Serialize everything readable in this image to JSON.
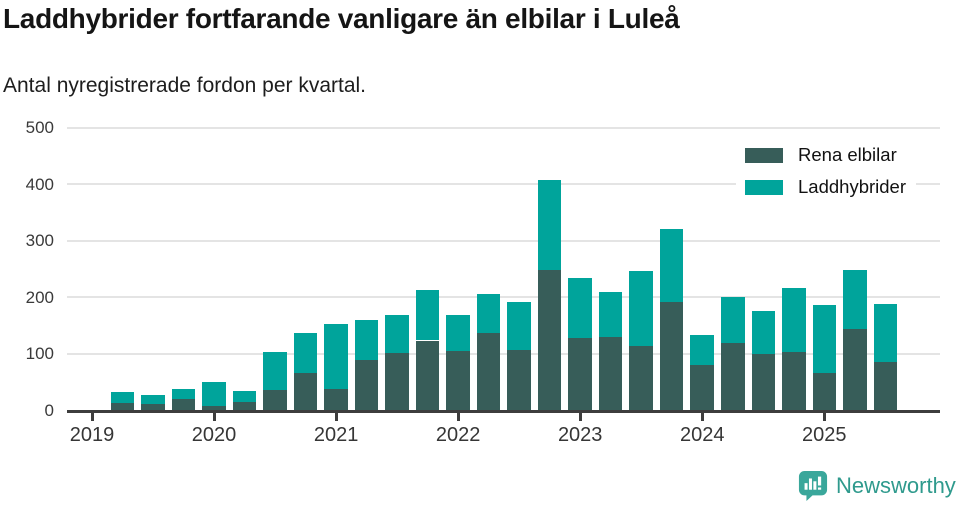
{
  "title": "Laddhybrider fortfarande vanligare än elbilar i Luleå",
  "subtitle": "Antal nyregistrerade fordon per kvartal.",
  "legend": {
    "items": [
      {
        "label": "Rena elbilar",
        "color": "#375d59"
      },
      {
        "label": "Laddhybrider",
        "color": "#00a49b"
      }
    ]
  },
  "chart_data": {
    "type": "bar",
    "stacked": true,
    "title": "Laddhybrider fortfarande vanligare än elbilar i Luleå",
    "subtitle": "Antal nyregistrerade fordon per kvartal.",
    "categories": [
      "2019 Q2",
      "2019 Q3",
      "2019 Q4",
      "2020 Q1",
      "2020 Q2",
      "2020 Q3",
      "2020 Q4",
      "2021 Q1",
      "2021 Q2",
      "2021 Q3",
      "2021 Q4",
      "2022 Q1",
      "2022 Q2",
      "2022 Q3",
      "2022 Q4",
      "2023 Q1",
      "2023 Q2",
      "2023 Q3",
      "2023 Q4",
      "2024 Q1",
      "2024 Q2",
      "2024 Q3",
      "2024 Q4",
      "2025 Q1",
      "2025 Q2",
      "2025 Q3"
    ],
    "series": [
      {
        "name": "Rena elbilar",
        "color": "#375d59",
        "values": [
          13,
          10,
          20,
          7,
          15,
          35,
          66,
          38,
          89,
          101,
          123,
          105,
          136,
          106,
          248,
          127,
          129,
          114,
          191,
          80,
          119,
          100,
          103,
          65,
          143,
          85
        ]
      },
      {
        "name": "Laddhybrider",
        "color": "#00a49b",
        "values": [
          18,
          17,
          18,
          43,
          18,
          67,
          71,
          114,
          71,
          67,
          90,
          63,
          70,
          85,
          159,
          106,
          79,
          132,
          129,
          52,
          81,
          75,
          113,
          120,
          104,
          102
        ]
      }
    ],
    "xlabel": "",
    "ylabel": "",
    "ylim": [
      0,
      500
    ],
    "y_ticks": [
      0,
      100,
      200,
      300,
      400,
      500
    ],
    "x_year_labels": [
      "2019",
      "2020",
      "2021",
      "2022",
      "2023",
      "2024",
      "2025"
    ],
    "grid": true,
    "legend_position": "top-right"
  },
  "footer": {
    "brand": "Newsworthy",
    "brand_color": "#2f9a8d",
    "logo_color": "#3aa79b"
  }
}
